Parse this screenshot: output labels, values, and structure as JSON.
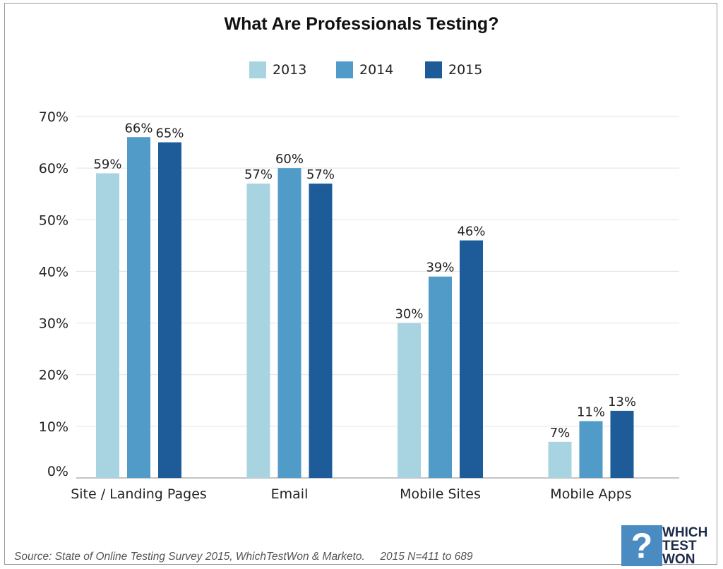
{
  "chart_data": {
    "type": "bar",
    "title": "What Are Professionals Testing?",
    "categories": [
      "Site / Landing Pages",
      "Email",
      "Mobile Sites",
      "Mobile Apps"
    ],
    "series": [
      {
        "name": "2013",
        "color": "#a8d4e2",
        "values": [
          59,
          57,
          30,
          7
        ]
      },
      {
        "name": "2014",
        "color": "#509bc8",
        "values": [
          66,
          60,
          39,
          11
        ]
      },
      {
        "name": "2015",
        "color": "#1d5c98",
        "values": [
          65,
          57,
          46,
          13
        ]
      }
    ],
    "ylim": [
      0,
      70
    ],
    "yticks": [
      0,
      10,
      20,
      30,
      40,
      50,
      60,
      70
    ],
    "ytick_labels": [
      "0%",
      "10%",
      "20%",
      "30%",
      "40%",
      "50%",
      "60%",
      "70%"
    ],
    "value_labels": [
      [
        "59%",
        "57%",
        "30%",
        "7%"
      ],
      [
        "66%",
        "60%",
        "39%",
        "11%"
      ],
      [
        "65%",
        "57%",
        "46%",
        "13%"
      ]
    ],
    "grid": true,
    "legend_position": "top-center",
    "xlabel": "",
    "ylabel": ""
  },
  "footer": {
    "source": "Source: State of Online Testing Survey 2015, WhichTestWon & Marketo.",
    "sample": "2015 N=411 to 689"
  },
  "logo": {
    "mark": "?",
    "line1": "WHICH",
    "line2": "TEST",
    "line3": "WON"
  }
}
